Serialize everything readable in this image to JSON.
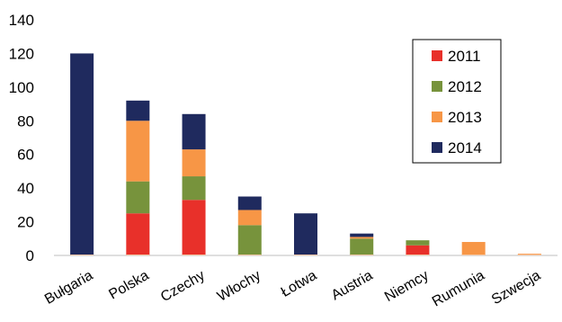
{
  "chart_data": {
    "type": "bar",
    "stacked": true,
    "categories": [
      "Bułgaria",
      "Polska",
      "Czechy",
      "Włochy",
      "Łotwa",
      "Austria",
      "Niemcy",
      "Rumunia",
      "Szwecja"
    ],
    "series": [
      {
        "name": "2011",
        "color": "#e8302a",
        "values": [
          0,
          25,
          33,
          0,
          0,
          0,
          6,
          0,
          0
        ]
      },
      {
        "name": "2012",
        "color": "#77933c",
        "values": [
          0,
          19,
          14,
          18,
          0,
          10,
          3,
          0,
          0
        ]
      },
      {
        "name": "2013",
        "color": "#f79646",
        "values": [
          0,
          36,
          16,
          9,
          0,
          1,
          0,
          8,
          1
        ]
      },
      {
        "name": "2014",
        "color": "#1f2a5e",
        "values": [
          120,
          12,
          21,
          8,
          25,
          2,
          0,
          0,
          0
        ]
      }
    ],
    "ylim": [
      0,
      140
    ],
    "yticks": [
      "0",
      "20",
      "40",
      "60",
      "80",
      "100",
      "120",
      "140"
    ],
    "grid": false,
    "legend_position": "right",
    "title": "",
    "xlabel": "",
    "ylabel": ""
  }
}
